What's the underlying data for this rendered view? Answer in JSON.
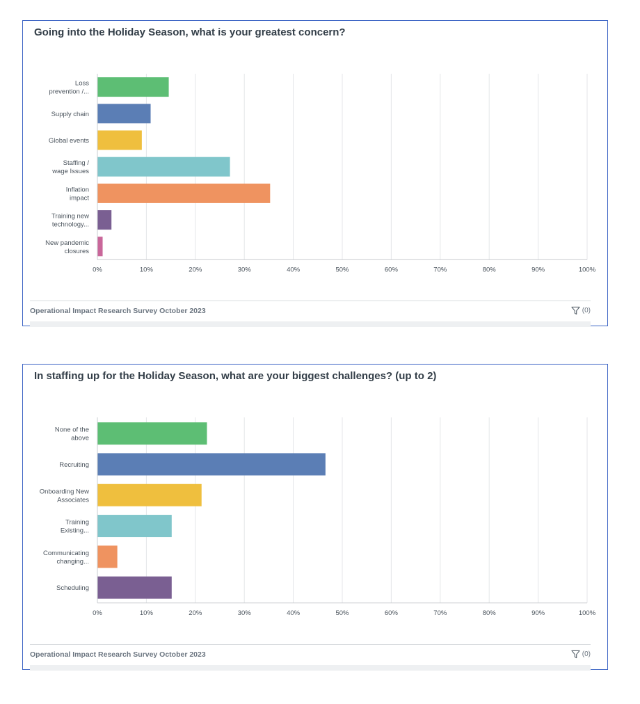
{
  "colors": {
    "grid": "#e4e6e8",
    "axis": "#c9ccd0",
    "label": "#4a535c",
    "palette": [
      "#5dbe74",
      "#5b7eb5",
      "#efbf3e",
      "#80c6cb",
      "#ef9360",
      "#7a5f92",
      "#c9679a"
    ]
  },
  "icons": {
    "filter": "filter-funnel-icon"
  },
  "charts": [
    {
      "title": "Going into the Holiday Season, what is your greatest concern?",
      "footer": "Operational Impact Research Survey October 2023",
      "filter_count": "(0)"
    },
    {
      "title": "In staffing up for the Holiday Season, what are your biggest challenges? (up to 2)",
      "footer": "Operational Impact Research Survey October 2023",
      "filter_count": "(0)"
    }
  ],
  "chart_data": [
    {
      "type": "bar",
      "orientation": "horizontal",
      "title": "Going into the Holiday Season, what is your greatest concern?",
      "categories": [
        [
          "Loss",
          "prevention /..."
        ],
        [
          "Supply chain"
        ],
        [
          "Global events"
        ],
        [
          "Staffing /",
          "wage Issues"
        ],
        [
          "Inflation",
          "impact"
        ],
        [
          "Training new",
          "technology..."
        ],
        [
          "New pandemic",
          "closures"
        ]
      ],
      "values": [
        14.5,
        10.8,
        9.0,
        27.0,
        35.2,
        2.8,
        1.0
      ],
      "xlim": [
        0,
        100
      ],
      "xticks": [
        "0%",
        "10%",
        "20%",
        "30%",
        "40%",
        "50%",
        "60%",
        "70%",
        "80%",
        "90%",
        "100%"
      ],
      "grid": true,
      "legend": "none"
    },
    {
      "type": "bar",
      "orientation": "horizontal",
      "title": "In staffing up for the Holiday Season, what are your biggest challenges? (up to 2)",
      "categories": [
        [
          "None of the",
          "above"
        ],
        [
          "Recruiting"
        ],
        [
          "Onboarding New",
          "Associates"
        ],
        [
          "Training",
          "Existing..."
        ],
        [
          "Communicating",
          "changing..."
        ],
        [
          "Scheduling"
        ]
      ],
      "values": [
        22.3,
        46.5,
        21.2,
        15.1,
        4.0,
        15.1
      ],
      "xlim": [
        0,
        100
      ],
      "xticks": [
        "0%",
        "10%",
        "20%",
        "30%",
        "40%",
        "50%",
        "60%",
        "70%",
        "80%",
        "90%",
        "100%"
      ],
      "grid": true,
      "legend": "none"
    }
  ]
}
